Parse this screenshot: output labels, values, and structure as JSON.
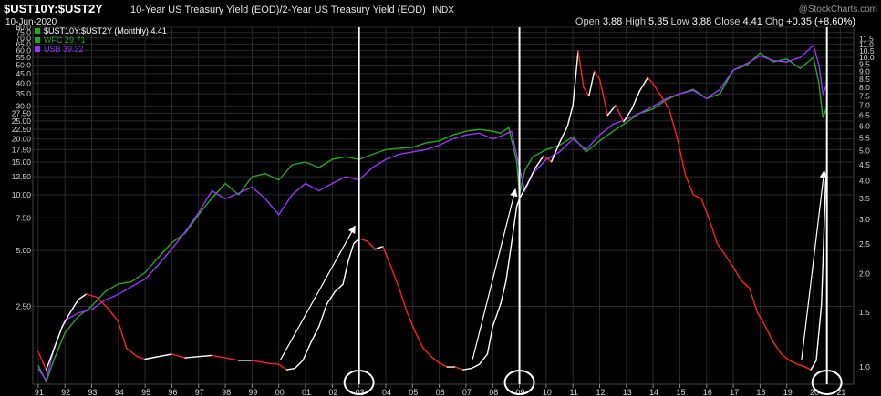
{
  "header": {
    "symbol": "$UST10Y:$UST2Y",
    "description": "10-Year US Treasury Yield (EOD)/2-Year US Treasury Yield (EOD)",
    "exchange": "INDX",
    "date": "10-Jun-2020",
    "watermark": "@StockCharts.com",
    "ohlc": [
      {
        "label": "Open",
        "value": "3.88"
      },
      {
        "label": "High",
        "value": "5.35"
      },
      {
        "label": "Low",
        "value": "3.88"
      },
      {
        "label": "Close",
        "value": "4.41"
      },
      {
        "label": "Chg",
        "value": "+0.35 (+8.60%)"
      }
    ]
  },
  "legend": [
    {
      "label": "$UST10Y:$UST2Y (Monthly) 4.41",
      "color": "#22aa22"
    },
    {
      "label": "WFC 29.71",
      "color": "#22aa22"
    },
    {
      "label": "USB 39.32",
      "color": "#9933ff"
    }
  ],
  "colors": {
    "ratio_rising": "#ffffff",
    "ratio_falling": "#ff2020",
    "wfc": "#22aa22",
    "usb": "#9933ff",
    "grid": "#2a2a2a",
    "axis_text": "#d8d8d8",
    "annotation": "#ffffff",
    "title_accent": "#ffffff"
  },
  "chart_data": {
    "type": "line",
    "yscale_left": "log",
    "yscale_right": "log",
    "grid": true,
    "legend_position": "top-left",
    "x_tick_labels": [
      "91",
      "92",
      "93",
      "94",
      "95",
      "96",
      "97",
      "98",
      "99",
      "00",
      "01",
      "02",
      "03",
      "04",
      "05",
      "06",
      "07",
      "08",
      "09",
      "10",
      "11",
      "12",
      "13",
      "14",
      "15",
      "16",
      "17",
      "18",
      "19",
      "20",
      "21"
    ],
    "left_axis_ticks": [
      "80.0",
      "75.0",
      "70.0",
      "65.0",
      "60.0",
      "55.0",
      "50.0",
      "45.0",
      "40.0",
      "35.0",
      "30.0",
      "27.50",
      "25.00",
      "22.50",
      "20.00",
      "17.50",
      "15.00",
      "12.50",
      "10.00",
      "7.50",
      "5.00",
      "2.50"
    ],
    "left_axis_range": [
      1.0,
      80.0
    ],
    "right_axis_ticks": [
      "11.5",
      "11.0",
      "10.5",
      "10.0",
      "9.5",
      "9.0",
      "8.5",
      "8.0",
      "7.5",
      "7.0",
      "6.5",
      "6.0",
      "5.5",
      "5.0",
      "4.5",
      "4.0",
      "3.5",
      "3.0",
      "2.5",
      "2.0",
      "1.5",
      "1.0"
    ],
    "right_axis_range": [
      0.88,
      12.5
    ],
    "series": [
      {
        "name": "$UST10Y:$UST2Y (Monthly)",
        "axis": "right",
        "points": [
          [
            1991.0,
            1.12
          ],
          [
            1991.3,
            0.98
          ],
          [
            1991.6,
            1.15
          ],
          [
            1991.9,
            1.35
          ],
          [
            1992.2,
            1.5
          ],
          [
            1992.5,
            1.65
          ],
          [
            1992.8,
            1.72
          ],
          [
            1993.2,
            1.68
          ],
          [
            1993.6,
            1.55
          ],
          [
            1994.0,
            1.4
          ],
          [
            1994.3,
            1.15
          ],
          [
            1994.7,
            1.08
          ],
          [
            1995.0,
            1.06
          ],
          [
            1995.5,
            1.08
          ],
          [
            1996.0,
            1.1
          ],
          [
            1996.5,
            1.07
          ],
          [
            1997.0,
            1.08
          ],
          [
            1997.5,
            1.09
          ],
          [
            1998.0,
            1.07
          ],
          [
            1998.5,
            1.05
          ],
          [
            1999.0,
            1.05
          ],
          [
            1999.5,
            1.03
          ],
          [
            2000.0,
            1.02
          ],
          [
            2000.3,
            0.98
          ],
          [
            2000.6,
            0.99
          ],
          [
            2000.9,
            1.05
          ],
          [
            2001.2,
            1.2
          ],
          [
            2001.5,
            1.35
          ],
          [
            2001.8,
            1.6
          ],
          [
            2002.1,
            1.75
          ],
          [
            2002.4,
            1.85
          ],
          [
            2002.6,
            2.2
          ],
          [
            2002.8,
            2.5
          ],
          [
            2003.0,
            2.6
          ],
          [
            2003.3,
            2.55
          ],
          [
            2003.6,
            2.4
          ],
          [
            2003.9,
            2.45
          ],
          [
            2004.2,
            2.1
          ],
          [
            2004.5,
            1.8
          ],
          [
            2004.8,
            1.5
          ],
          [
            2005.1,
            1.3
          ],
          [
            2005.4,
            1.15
          ],
          [
            2005.7,
            1.08
          ],
          [
            2006.0,
            1.03
          ],
          [
            2006.3,
            1.0
          ],
          [
            2006.6,
            1.0
          ],
          [
            2006.9,
            0.98
          ],
          [
            2007.2,
            0.99
          ],
          [
            2007.5,
            1.02
          ],
          [
            2007.8,
            1.1
          ],
          [
            2008.0,
            1.35
          ],
          [
            2008.3,
            1.6
          ],
          [
            2008.5,
            1.9
          ],
          [
            2008.7,
            2.5
          ],
          [
            2008.9,
            3.3
          ],
          [
            2009.0,
            3.5
          ],
          [
            2009.3,
            3.9
          ],
          [
            2009.6,
            4.4
          ],
          [
            2009.9,
            4.8
          ],
          [
            2010.2,
            4.6
          ],
          [
            2010.5,
            5.3
          ],
          [
            2010.8,
            6.0
          ],
          [
            2011.0,
            7.0
          ],
          [
            2011.2,
            10.5
          ],
          [
            2011.4,
            8.0
          ],
          [
            2011.6,
            7.5
          ],
          [
            2011.8,
            9.0
          ],
          [
            2012.0,
            8.5
          ],
          [
            2012.3,
            6.5
          ],
          [
            2012.6,
            7.0
          ],
          [
            2012.9,
            6.2
          ],
          [
            2013.2,
            6.8
          ],
          [
            2013.5,
            7.8
          ],
          [
            2013.8,
            8.6
          ],
          [
            2014.0,
            8.2
          ],
          [
            2014.3,
            7.5
          ],
          [
            2014.6,
            6.8
          ],
          [
            2014.9,
            5.5
          ],
          [
            2015.2,
            4.2
          ],
          [
            2015.5,
            3.6
          ],
          [
            2015.8,
            3.5
          ],
          [
            2016.1,
            3.0
          ],
          [
            2016.4,
            2.5
          ],
          [
            2016.7,
            2.3
          ],
          [
            2017.0,
            2.1
          ],
          [
            2017.3,
            1.9
          ],
          [
            2017.6,
            1.8
          ],
          [
            2017.9,
            1.5
          ],
          [
            2018.2,
            1.35
          ],
          [
            2018.5,
            1.2
          ],
          [
            2018.8,
            1.1
          ],
          [
            2019.1,
            1.05
          ],
          [
            2019.4,
            1.02
          ],
          [
            2019.7,
            1.0
          ],
          [
            2019.9,
            0.98
          ],
          [
            2020.1,
            1.05
          ],
          [
            2020.3,
            1.6
          ],
          [
            2020.45,
            3.88
          ],
          [
            2020.5,
            4.41
          ]
        ]
      },
      {
        "name": "WFC",
        "axis": "left",
        "points": [
          [
            1991.0,
            1.2
          ],
          [
            1991.3,
            0.98
          ],
          [
            1991.6,
            1.3
          ],
          [
            1992.0,
            1.8
          ],
          [
            1992.5,
            2.2
          ],
          [
            1993.0,
            2.5
          ],
          [
            1993.5,
            3.0
          ],
          [
            1994.0,
            3.3
          ],
          [
            1994.5,
            3.4
          ],
          [
            1995.0,
            3.8
          ],
          [
            1995.5,
            4.6
          ],
          [
            1996.0,
            5.5
          ],
          [
            1996.5,
            6.2
          ],
          [
            1997.0,
            7.8
          ],
          [
            1997.5,
            9.6
          ],
          [
            1998.0,
            11.5
          ],
          [
            1998.5,
            10.0
          ],
          [
            1999.0,
            12.5
          ],
          [
            1999.5,
            13.0
          ],
          [
            2000.0,
            12.0
          ],
          [
            2000.5,
            14.5
          ],
          [
            2001.0,
            15.0
          ],
          [
            2001.5,
            14.0
          ],
          [
            2002.0,
            15.5
          ],
          [
            2002.5,
            16.0
          ],
          [
            2003.0,
            15.5
          ],
          [
            2003.5,
            16.5
          ],
          [
            2004.0,
            17.5
          ],
          [
            2004.5,
            17.8
          ],
          [
            2005.0,
            18.0
          ],
          [
            2005.5,
            19.0
          ],
          [
            2006.0,
            19.5
          ],
          [
            2006.5,
            21.0
          ],
          [
            2007.0,
            22.0
          ],
          [
            2007.5,
            22.5
          ],
          [
            2008.0,
            22.0
          ],
          [
            2008.3,
            21.5
          ],
          [
            2008.6,
            23.0
          ],
          [
            2008.9,
            15.0
          ],
          [
            2009.0,
            10.0
          ],
          [
            2009.2,
            13.5
          ],
          [
            2009.5,
            16.0
          ],
          [
            2010.0,
            17.5
          ],
          [
            2010.5,
            18.5
          ],
          [
            2011.0,
            20.5
          ],
          [
            2011.5,
            17.0
          ],
          [
            2012.0,
            19.5
          ],
          [
            2012.5,
            22.0
          ],
          [
            2013.0,
            24.5
          ],
          [
            2013.5,
            27.5
          ],
          [
            2014.0,
            29.0
          ],
          [
            2014.5,
            32.5
          ],
          [
            2015.0,
            35.0
          ],
          [
            2015.5,
            37.0
          ],
          [
            2016.0,
            33.0
          ],
          [
            2016.5,
            35.0
          ],
          [
            2017.0,
            47.0
          ],
          [
            2017.5,
            50.0
          ],
          [
            2018.0,
            58.0
          ],
          [
            2018.5,
            52.0
          ],
          [
            2019.0,
            54.0
          ],
          [
            2019.5,
            48.0
          ],
          [
            2020.0,
            55.0
          ],
          [
            2020.2,
            40.0
          ],
          [
            2020.35,
            26.0
          ],
          [
            2020.5,
            29.71
          ]
        ]
      },
      {
        "name": "USB",
        "axis": "left",
        "points": [
          [
            1991.0,
            1.15
          ],
          [
            1991.3,
            1.0
          ],
          [
            1991.6,
            1.5
          ],
          [
            1992.0,
            2.1
          ],
          [
            1992.5,
            2.3
          ],
          [
            1993.0,
            2.4
          ],
          [
            1993.5,
            2.7
          ],
          [
            1994.0,
            2.9
          ],
          [
            1994.5,
            3.2
          ],
          [
            1995.0,
            3.5
          ],
          [
            1995.5,
            4.2
          ],
          [
            1996.0,
            5.1
          ],
          [
            1996.5,
            6.3
          ],
          [
            1997.0,
            8.0
          ],
          [
            1997.5,
            10.5
          ],
          [
            1998.0,
            9.5
          ],
          [
            1998.5,
            10.2
          ],
          [
            1999.0,
            11.0
          ],
          [
            1999.5,
            9.5
          ],
          [
            2000.0,
            7.8
          ],
          [
            2000.5,
            10.0
          ],
          [
            2001.0,
            11.5
          ],
          [
            2001.5,
            10.5
          ],
          [
            2002.0,
            11.5
          ],
          [
            2002.5,
            12.5
          ],
          [
            2003.0,
            12.0
          ],
          [
            2003.5,
            14.0
          ],
          [
            2004.0,
            15.5
          ],
          [
            2004.5,
            16.5
          ],
          [
            2005.0,
            17.0
          ],
          [
            2005.5,
            17.5
          ],
          [
            2006.0,
            18.5
          ],
          [
            2006.5,
            20.0
          ],
          [
            2007.0,
            21.0
          ],
          [
            2007.5,
            21.5
          ],
          [
            2008.0,
            20.0
          ],
          [
            2008.4,
            21.0
          ],
          [
            2008.7,
            22.0
          ],
          [
            2009.0,
            14.0
          ],
          [
            2009.2,
            10.5
          ],
          [
            2009.5,
            13.0
          ],
          [
            2010.0,
            15.5
          ],
          [
            2010.5,
            17.0
          ],
          [
            2011.0,
            20.0
          ],
          [
            2011.5,
            17.5
          ],
          [
            2012.0,
            21.0
          ],
          [
            2012.5,
            24.0
          ],
          [
            2013.0,
            25.5
          ],
          [
            2013.5,
            27.5
          ],
          [
            2014.0,
            30.0
          ],
          [
            2014.5,
            33.0
          ],
          [
            2015.0,
            35.0
          ],
          [
            2015.5,
            36.5
          ],
          [
            2016.0,
            33.0
          ],
          [
            2016.5,
            37.0
          ],
          [
            2017.0,
            47.0
          ],
          [
            2017.5,
            51.0
          ],
          [
            2018.0,
            56.0
          ],
          [
            2018.5,
            53.0
          ],
          [
            2019.0,
            52.0
          ],
          [
            2019.5,
            55.0
          ],
          [
            2020.0,
            64.0
          ],
          [
            2020.2,
            50.0
          ],
          [
            2020.35,
            35.0
          ],
          [
            2020.5,
            39.32
          ]
        ]
      }
    ],
    "markers": {
      "vertical_lines_at": [
        2003.0,
        2009.0,
        2020.5
      ],
      "circles_at": [
        2003.0,
        2009.0,
        2020.5
      ],
      "arrows": [
        {
          "from": [
            2000.05,
            1.05
          ],
          "to": [
            2002.85,
            2.85
          ]
        },
        {
          "from": [
            2007.25,
            1.06
          ],
          "to": [
            2008.85,
            3.75
          ]
        },
        {
          "from": [
            2019.55,
            1.05
          ],
          "to": [
            2020.4,
            4.3
          ]
        }
      ]
    }
  }
}
